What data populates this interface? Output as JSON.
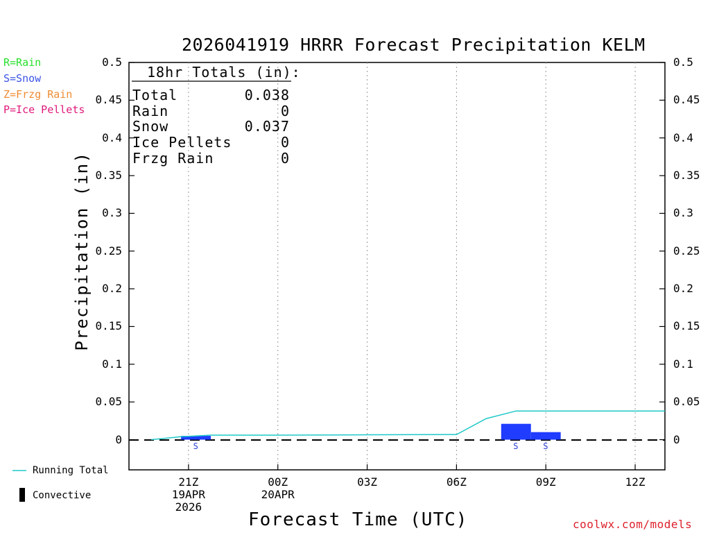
{
  "title": "2026041919 HRRR Forecast Precipitation KELM",
  "legend": [
    {
      "label": "R=Rain",
      "color": "#26e02a"
    },
    {
      "label": "S=Snow",
      "color": "#3b54e6"
    },
    {
      "label": "Z=Frzg Rain",
      "color": "#ef8c33"
    },
    {
      "label": "P=Ice Pellets",
      "color": "#e0197a"
    }
  ],
  "totals": {
    "header": "18hr Totals (in):",
    "rows": [
      {
        "label": "Total",
        "value": "0.038"
      },
      {
        "label": "Rain",
        "value": "0"
      },
      {
        "label": "Snow",
        "value": "0.037"
      },
      {
        "label": "Ice Pellets",
        "value": "0"
      },
      {
        "label": "Frzg Rain",
        "value": "0"
      }
    ]
  },
  "bottom_legend": {
    "running_total": "Running Total",
    "convective": "Convective",
    "running_total_color": "#1fc8c8"
  },
  "credit": "coolwx.com/models",
  "bar_color": "#1f3cff",
  "chart_data": {
    "type": "bar",
    "title": "2026041919 HRRR Forecast Precipitation KELM",
    "xlabel": "Forecast Time (UTC)",
    "ylabel": "Precipitation (in)",
    "ylim": [
      -0.04,
      0.5
    ],
    "xlim": [
      19,
      37
    ],
    "yticks": [
      0,
      0.05,
      0.1,
      0.15,
      0.2,
      0.25,
      0.3,
      0.35,
      0.4,
      0.45,
      0.5
    ],
    "ytick_labels": [
      "0",
      "0.05",
      "0.1",
      "0.15",
      "0.2",
      "0.25",
      "0.3",
      "0.35",
      "0.4",
      "0.45",
      "0.5"
    ],
    "xticks": [
      {
        "hour": 21,
        "lines": [
          "21Z",
          "19APR",
          "2026"
        ]
      },
      {
        "hour": 24,
        "lines": [
          "00Z",
          "20APR"
        ]
      },
      {
        "hour": 27,
        "lines": [
          "03Z"
        ]
      },
      {
        "hour": 30,
        "lines": [
          "06Z"
        ]
      },
      {
        "hour": 33,
        "lines": [
          "09Z"
        ]
      },
      {
        "hour": 36,
        "lines": [
          "12Z"
        ]
      }
    ],
    "grid": "vertical dotted",
    "series": [
      {
        "name": "Hourly Snow",
        "kind": "bar",
        "bars": [
          {
            "start": 20.75,
            "end": 21.75,
            "value": 0.005,
            "type": "S"
          },
          {
            "start": 31.5,
            "end": 32.5,
            "value": 0.021,
            "type": "S"
          },
          {
            "start": 32.5,
            "end": 33.5,
            "value": 0.01,
            "type": "S"
          }
        ]
      },
      {
        "name": "Running Total",
        "kind": "line",
        "x": [
          19.75,
          20.75,
          21.75,
          24.0,
          27.0,
          30.0,
          31.0,
          32.0,
          33.0,
          37.0
        ],
        "y": [
          0.0,
          0.004,
          0.006,
          0.006,
          0.0065,
          0.0068,
          0.028,
          0.038,
          0.038,
          0.038
        ]
      }
    ]
  }
}
